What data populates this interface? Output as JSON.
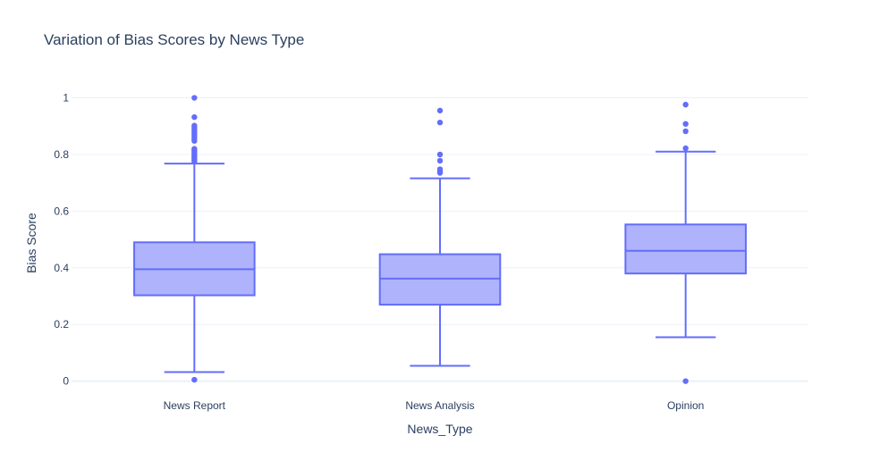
{
  "chart_data": {
    "type": "box",
    "title": "Variation of Bias Scores by News Type",
    "xlabel": "News_Type",
    "ylabel": "Bias Score",
    "ylim": [
      -0.02,
      1.03
    ],
    "yticks": [
      0,
      0.2,
      0.4,
      0.6,
      0.8,
      1
    ],
    "ytick_labels": [
      "0",
      "0.2",
      "0.4",
      "0.6",
      "0.8",
      "1"
    ],
    "grid": true,
    "colors": {
      "box_fill": "#aeb3fb",
      "box_line": "#636efa",
      "grid": "#ebf0f8",
      "text": "#2a3f5f"
    },
    "categories": [
      "News Report",
      "News Analysis",
      "Opinion"
    ],
    "boxes": [
      {
        "category": "News Report",
        "q1": 0.303,
        "median": 0.395,
        "q3": 0.49,
        "lower_fence": 0.032,
        "upper_fence": 0.768,
        "outliers": [
          0.005,
          0.775,
          0.78,
          0.785,
          0.79,
          0.795,
          0.8,
          0.805,
          0.81,
          0.815,
          0.82,
          0.848,
          0.855,
          0.862,
          0.87,
          0.876,
          0.882,
          0.888,
          0.895,
          0.902,
          0.932,
          1.0
        ]
      },
      {
        "category": "News Analysis",
        "q1": 0.27,
        "median": 0.362,
        "q3": 0.448,
        "lower_fence": 0.054,
        "upper_fence": 0.716,
        "outliers": [
          0.735,
          0.742,
          0.748,
          0.778,
          0.8,
          0.913,
          0.955
        ]
      },
      {
        "category": "Opinion",
        "q1": 0.38,
        "median": 0.46,
        "q3": 0.553,
        "lower_fence": 0.155,
        "upper_fence": 0.81,
        "outliers": [
          0.0,
          0.822,
          0.882,
          0.908,
          0.976
        ]
      }
    ]
  }
}
